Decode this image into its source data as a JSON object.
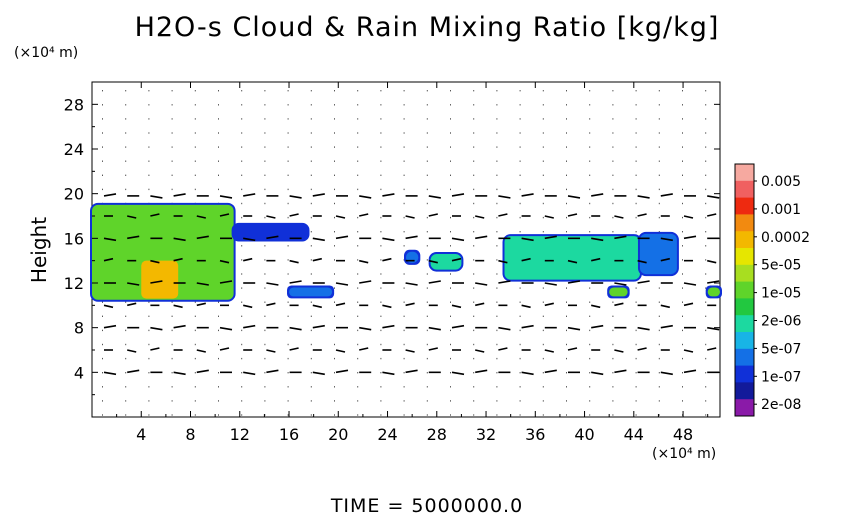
{
  "title": "H2O-s Cloud & Rain Mixing Ratio [kg/kg]",
  "time_label": "TIME = 5000000.0",
  "chart_data": {
    "type": "heatmap",
    "title": "H2O-s Cloud & Rain Mixing Ratio [kg/kg]",
    "xlabel": "",
    "ylabel": "Height",
    "x_unit": "(×10⁴ m)",
    "y_unit": "(×10⁴ m)",
    "xlim": [
      0,
      51
    ],
    "ylim": [
      0,
      30
    ],
    "x_ticks": [
      4,
      8,
      12,
      16,
      20,
      24,
      28,
      32,
      36,
      40,
      44,
      48
    ],
    "y_ticks": [
      4,
      8,
      12,
      16,
      20,
      24,
      28
    ],
    "colorbar": {
      "labels": [
        "0.005",
        "0.001",
        "0.0002",
        "5e-05",
        "1e-05",
        "2e-06",
        "5e-07",
        "1e-07",
        "2e-08"
      ],
      "colors": [
        "#f6a9a0",
        "#f06060",
        "#ee2a10",
        "#f28a10",
        "#f3b800",
        "#e6e600",
        "#a8de20",
        "#5fd42a",
        "#22c840",
        "#1cd9a0",
        "#18b4e6",
        "#1470e6",
        "#1030d8",
        "#121a9a",
        "#8a1aa8"
      ]
    },
    "regions": [
      {
        "x0": 0,
        "x1": 11.5,
        "y0": 10.5,
        "y1": 19,
        "level": "1e-05",
        "peak": "0.0002",
        "peak_x": [
          4,
          7
        ],
        "peak_y": [
          10.6,
          14
        ]
      },
      {
        "x0": 11.5,
        "x1": 17.5,
        "y0": 15.9,
        "y1": 17.2,
        "level": "1e-07"
      },
      {
        "x0": 16,
        "x1": 19.5,
        "y0": 10.8,
        "y1": 11.6,
        "level": "5e-07"
      },
      {
        "x0": 25.5,
        "x1": 26.5,
        "y0": 13.8,
        "y1": 14.8,
        "level": "5e-07"
      },
      {
        "x0": 27.5,
        "x1": 30,
        "y0": 13.2,
        "y1": 14.6,
        "level": "2e-06"
      },
      {
        "x0": 33.5,
        "x1": 44.5,
        "y0": 12.3,
        "y1": 16.2,
        "level": "2e-06"
      },
      {
        "x0": 44.5,
        "x1": 47.5,
        "y0": 12.8,
        "y1": 16.4,
        "level": "5e-07"
      },
      {
        "x0": 42,
        "x1": 43.5,
        "y0": 10.8,
        "y1": 11.6,
        "level": "1e-05"
      },
      {
        "x0": 50,
        "x1": 51,
        "y0": 10.8,
        "y1": 11.6,
        "level": "1e-05"
      }
    ]
  }
}
